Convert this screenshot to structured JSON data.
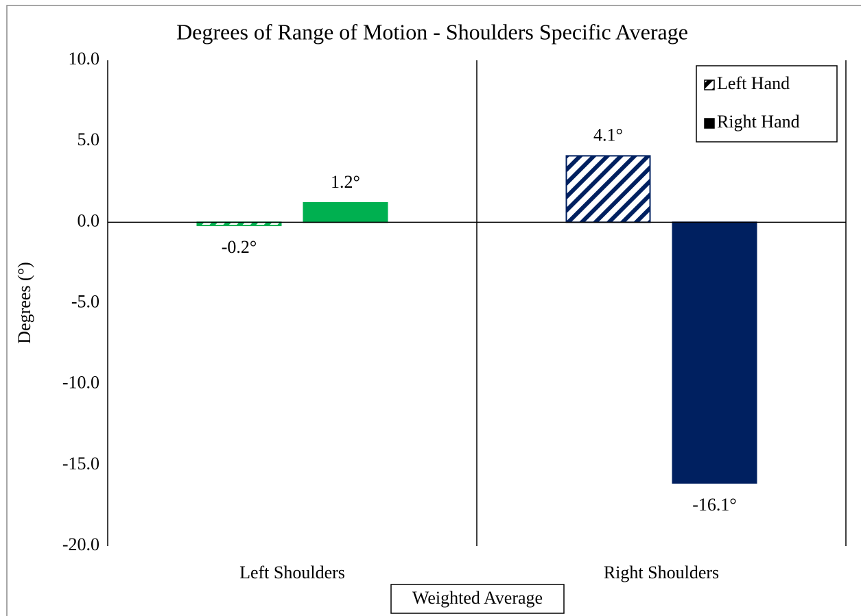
{
  "chart_data": {
    "type": "bar",
    "title": "Degrees of Range of Motion - Shoulders Specific Average",
    "x_label": "Weighted Average",
    "y_label": "Degrees (°)",
    "categories": [
      "Left Shoulders",
      "Right Shoulders"
    ],
    "category_colors": [
      "#00b050",
      "#002060"
    ],
    "series": [
      {
        "name": "Left Hand",
        "color": "#000000",
        "pattern": "hatch",
        "values": [
          -0.2,
          4.1
        ],
        "value_labels": [
          "-0.2°",
          "4.1°"
        ]
      },
      {
        "name": "Right Hand",
        "color": "#000000",
        "pattern": "solid",
        "values": [
          1.2,
          -16.1
        ],
        "value_labels": [
          "1.2°",
          "-16.1°"
        ]
      }
    ],
    "ylim": [
      -20,
      10
    ],
    "yticks": [
      {
        "value": 10,
        "label": "10.0"
      },
      {
        "value": 5,
        "label": "5.0"
      },
      {
        "value": 0,
        "label": "0.0"
      },
      {
        "value": -5,
        "label": "-5.0"
      },
      {
        "value": -10,
        "label": "-10.0"
      },
      {
        "value": -15,
        "label": "-15.0"
      },
      {
        "value": -20,
        "label": "-20.0"
      }
    ],
    "grid": false,
    "legend": "top-right"
  }
}
